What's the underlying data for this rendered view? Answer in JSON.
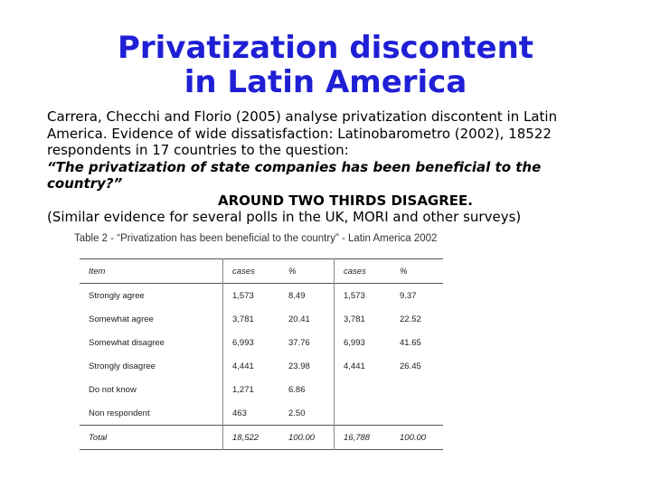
{
  "title": {
    "line1": "Privatization discontent",
    "line2": "in Latin America"
  },
  "body": {
    "paragraph": "Carrera, Checchi and Florio (2005) analyse privatization discontent in Latin America. Evidence of wide dissatisfaction: Latinobarometro (2002), 18522 respondents in 17 countries to the question:",
    "question": "“The privatization of state companies has been beneficial to the country?”",
    "finding": "AROUND TWO THIRDS DISAGREE.",
    "note": "(Similar evidence for several polls in the UK, MORI and other surveys)"
  },
  "table": {
    "caption": "Table 2 - “Privatization has been beneficial to the country” - Latin America 2002",
    "headers": [
      "Item",
      "cases",
      "%",
      "cases",
      "%"
    ],
    "rows": [
      [
        "Strongly agree",
        "1,573",
        "8.49",
        "1,573",
        "9.37"
      ],
      [
        "Somewhat agree",
        "3,781",
        "20.41",
        "3,781",
        "22.52"
      ],
      [
        "Somewhat disagree",
        "6,993",
        "37.76",
        "6,993",
        "41.65"
      ],
      [
        "Strongly disagree",
        "4,441",
        "23.98",
        "4,441",
        "26.45"
      ],
      [
        "Do not know",
        "1,271",
        "6.86",
        "",
        ""
      ],
      [
        "Non respondent",
        "463",
        "2.50",
        "",
        ""
      ]
    ],
    "total": [
      "Total",
      "18,522",
      "100.00",
      "16,788",
      "100.00"
    ]
  }
}
